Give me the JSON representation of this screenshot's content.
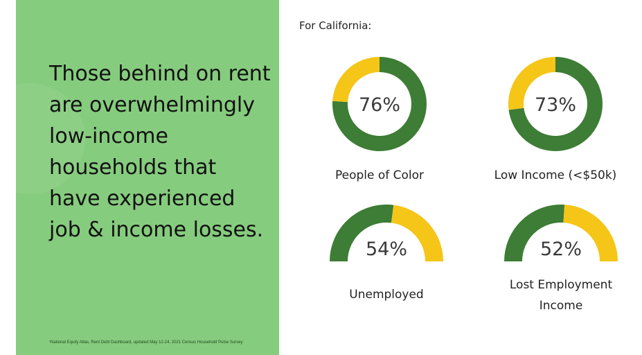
{
  "left_panel": {
    "headline": "Those behind on rent are overwhelmingly low-income households that have experienced job & income losses.",
    "footnote": "¹National Equity Atlas, Rent Debt Dashboard, updated May 12-24, 2021 Census Household Pulse Survey"
  },
  "region_label": "For California:",
  "colors": {
    "primary": "#3d7d35",
    "secondary": "#f5c518",
    "panel": "#86cc7e"
  },
  "chart_data": [
    {
      "type": "pie",
      "style": "donut",
      "label": "People of Color",
      "value_text": "76%",
      "value": 76
    },
    {
      "type": "pie",
      "style": "donut",
      "label": "Low Income (<$50k)",
      "value_text": "73%",
      "value": 73
    },
    {
      "type": "pie",
      "style": "gauge",
      "label": "Unemployed",
      "value_text": "54%",
      "value": 54
    },
    {
      "type": "pie",
      "style": "gauge",
      "label": "Lost Employment Income",
      "label_lines": [
        "Lost Employment",
        "Income"
      ],
      "value_text": "52%",
      "value": 52
    }
  ]
}
